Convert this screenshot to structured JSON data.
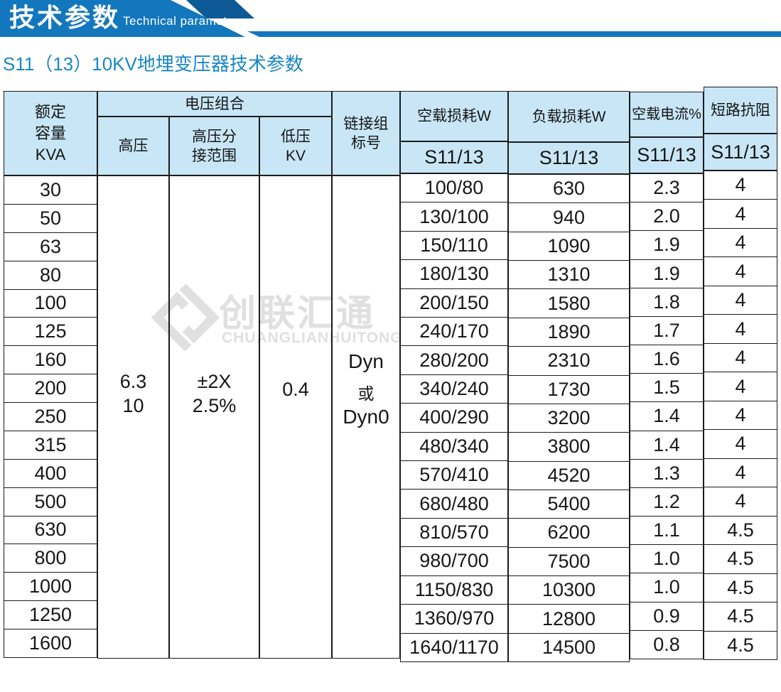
{
  "banner": {
    "title_cn": "技术参数",
    "title_en": "Technical parameter"
  },
  "subtitle": "S11（13）10KV地埋变压器技术参数",
  "watermark": {
    "logo": "interlocked-diamond-logo",
    "cn": "创联汇通",
    "en": "CHUANGLIANHUITONG"
  },
  "colors": {
    "banner_blue": "#1377bd",
    "banner_dark_blue": "#0d5a96",
    "header_bg": "#c8e6f6",
    "subtitle_blue": "#1987c5",
    "table_border": "#1b1b1b",
    "watermark_gray": "#e0e0e0"
  },
  "table": {
    "header": {
      "capacity_lines": [
        "额定",
        "容量",
        "KVA"
      ],
      "voltage_group": "电压组合",
      "hv": "高压",
      "tap_lines": [
        "高压分",
        "接范围"
      ],
      "lv_lines": [
        "低压",
        "KV"
      ],
      "vector_lines": [
        "链接组",
        "标号"
      ],
      "no_load_loss": "空载损耗W",
      "load_loss": "负载损耗W",
      "no_load_current": "空载电流%",
      "impedance": "短路抗阻",
      "model_no_load": "S11/13",
      "model_load": "S11/13",
      "model_current": "S11/13",
      "model_impedance": "S11/13"
    },
    "merged": {
      "hv_lines": [
        "6.3",
        "10"
      ],
      "tap_lines": [
        "±2X",
        "2.5%"
      ],
      "lv": "0.4",
      "vector_lines": [
        "Dyn",
        "或",
        "Dyn0"
      ]
    },
    "capacity": [
      "30",
      "50",
      "63",
      "80",
      "100",
      "125",
      "160",
      "200",
      "250",
      "315",
      "400",
      "500",
      "630",
      "800",
      "1000",
      "1250",
      "1600"
    ],
    "no_load_loss": [
      "100/80",
      "130/100",
      "150/110",
      "180/130",
      "200/150",
      "240/170",
      "280/200",
      "340/240",
      "400/290",
      "480/340",
      "570/410",
      "680/480",
      "810/570",
      "980/700",
      "1150/830",
      "1360/970",
      "1640/1170"
    ],
    "load_loss": [
      "630",
      "940",
      "1090",
      "1310",
      "1580",
      "1890",
      "2310",
      "1730",
      "3200",
      "3800",
      "4520",
      "5400",
      "6200",
      "7500",
      "10300",
      "12800",
      "14500"
    ],
    "no_load_current": [
      "2.3",
      "2.0",
      "1.9",
      "1.9",
      "1.8",
      "1.7",
      "1.6",
      "1.5",
      "1.4",
      "1.4",
      "1.3",
      "1.2",
      "1.1",
      "1.0",
      "1.0",
      "0.9",
      "0.8"
    ],
    "impedance": [
      "4",
      "4",
      "4",
      "4",
      "4",
      "4",
      "4",
      "4",
      "4",
      "4",
      "4",
      "4",
      "4.5",
      "4.5",
      "4.5",
      "4.5",
      "4.5"
    ]
  }
}
